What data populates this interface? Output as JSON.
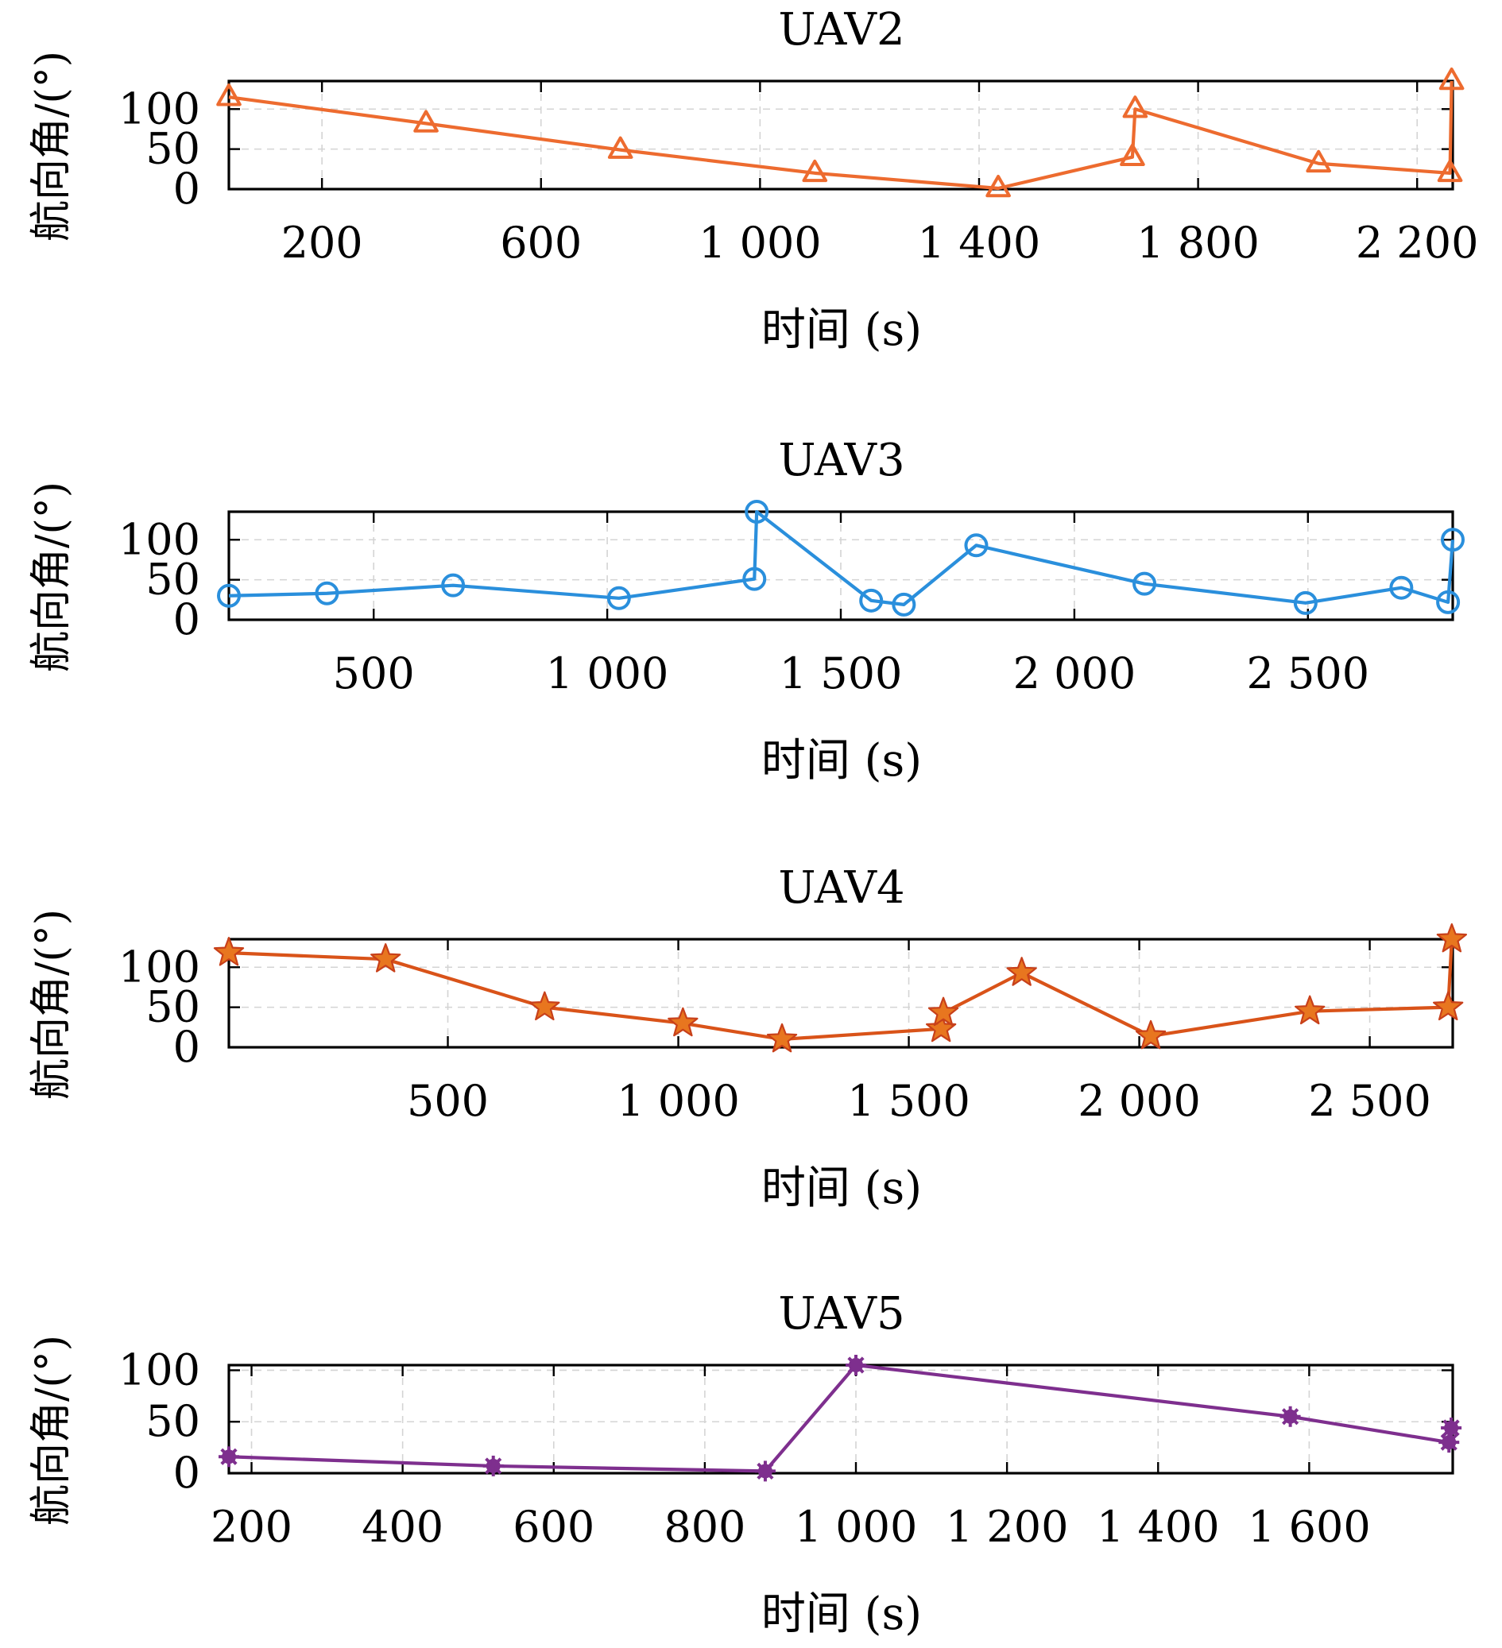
{
  "chart_data": [
    {
      "type": "line",
      "title": "UAV2",
      "xlabel": "时间 (s)",
      "ylabel": "航向角/(°)",
      "xlim": [
        30,
        2265
      ],
      "ylim": [
        0,
        135
      ],
      "xticks": [
        200,
        600,
        1000,
        1400,
        1800,
        2200
      ],
      "xtick_labels": [
        "200",
        "600",
        "1 000",
        "1 400",
        "1 800",
        "2 200"
      ],
      "yticks": [
        0,
        50,
        100
      ],
      "ytick_labels": [
        "0",
        "50",
        "100"
      ],
      "grid": true,
      "marker": "triangle",
      "color": "#ED6B2F",
      "series": [
        {
          "x": [
            30,
            390,
            745,
            1100,
            1435,
            1680,
            1685,
            2020,
            2260,
            2263
          ],
          "y": [
            115,
            82,
            49,
            20,
            1,
            40,
            100,
            32,
            20,
            135
          ]
        }
      ]
    },
    {
      "type": "line",
      "title": "UAV3",
      "xlabel": "时间 (s)",
      "ylabel": "航向角/(°)",
      "xlim": [
        190,
        2810
      ],
      "ylim": [
        0,
        135
      ],
      "xticks": [
        500,
        1000,
        1500,
        2000,
        2500
      ],
      "xtick_labels": [
        "500",
        "1 000",
        "1 500",
        "2 000",
        "2 500"
      ],
      "yticks": [
        0,
        50,
        100
      ],
      "ytick_labels": [
        "0",
        "50",
        "100"
      ],
      "grid": true,
      "marker": "circle",
      "color": "#2A8FDC",
      "series": [
        {
          "x": [
            190,
            400,
            670,
            1025,
            1315,
            1320,
            1565,
            1635,
            1790,
            2150,
            2495,
            2700,
            2800,
            2810
          ],
          "y": [
            30,
            33,
            43,
            27,
            51,
            135,
            24,
            19,
            93,
            45,
            21,
            40,
            22,
            100
          ]
        }
      ]
    },
    {
      "type": "line",
      "title": "UAV4",
      "xlabel": "时间 (s)",
      "ylabel": "航向角/(°)",
      "xlim": [
        25,
        2680
      ],
      "ylim": [
        0,
        135
      ],
      "xticks": [
        500,
        1000,
        1500,
        2000,
        2500
      ],
      "xtick_labels": [
        "500",
        "1 000",
        "1 500",
        "2 000",
        "2 500"
      ],
      "yticks": [
        0,
        50,
        100
      ],
      "ytick_labels": [
        "0",
        "50",
        "100"
      ],
      "grid": true,
      "marker": "star",
      "color": "#D95319",
      "series": [
        {
          "x": [
            25,
            365,
            710,
            1010,
            1225,
            1570,
            1575,
            1745,
            2025,
            2370,
            2670,
            2678
          ],
          "y": [
            118,
            110,
            50,
            30,
            10,
            23,
            43,
            93,
            14,
            45,
            50,
            135
          ]
        }
      ]
    },
    {
      "type": "line",
      "title": "UAV5",
      "xlabel": "时间 (s)",
      "ylabel": "航向角/(°)",
      "xlim": [
        170,
        1790
      ],
      "ylim": [
        0,
        105
      ],
      "xticks": [
        200,
        400,
        600,
        800,
        1000,
        1200,
        1400,
        1600
      ],
      "xtick_labels": [
        "200",
        "400",
        "600",
        "800",
        "1 000",
        "1 200",
        "1 400",
        "1 600"
      ],
      "yticks": [
        0,
        50,
        100
      ],
      "ytick_labels": [
        "0",
        "50",
        "100"
      ],
      "grid": true,
      "marker": "asterisk",
      "color": "#7E2F8E",
      "series": [
        {
          "x": [
            170,
            520,
            880,
            1000,
            1575,
            1785,
            1788
          ],
          "y": [
            16,
            7,
            2,
            105,
            55,
            30,
            44
          ]
        }
      ]
    }
  ]
}
